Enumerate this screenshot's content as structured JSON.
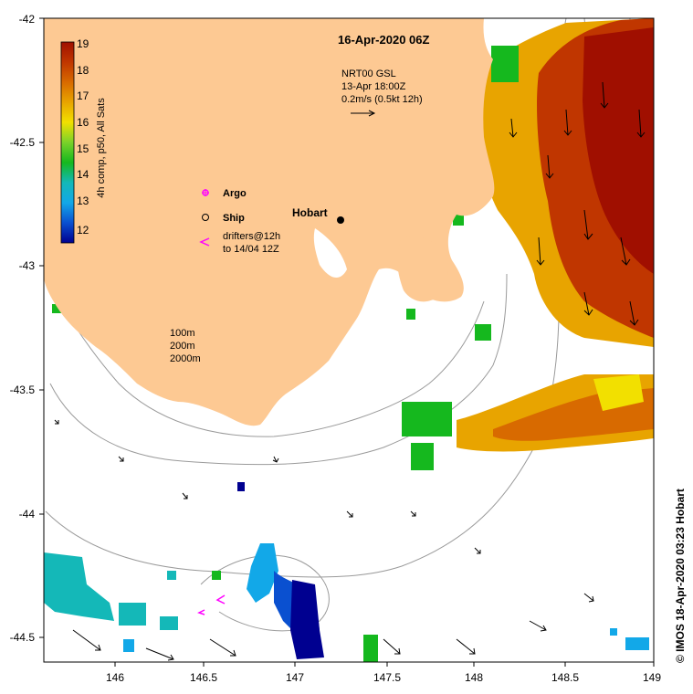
{
  "title": "16-Apr-2020 06Z",
  "colorbar": {
    "label": "4h comp, p50, All Sats",
    "ticks": [
      "19",
      "18",
      "17",
      "16",
      "15",
      "14",
      "13",
      "12"
    ],
    "stops": [
      "#a00f00",
      "#c03600",
      "#d86a00",
      "#e8a400",
      "#f2e000",
      "#7ad22a",
      "#15b81e",
      "#14b8b8",
      "#12a8e8",
      "#0a50d0",
      "#000090"
    ]
  },
  "current_info": {
    "line1": "NRT00 GSL",
    "line2": "13-Apr 18:00Z",
    "line3": "0.2m/s (0.5kt 12h)"
  },
  "legend": {
    "argo": "Argo",
    "ship": "Ship",
    "drifters_line1": "drifters@12h",
    "drifters_line2": "to 14/04 12Z"
  },
  "depth_legend": [
    "100m",
    "200m",
    "2000m"
  ],
  "place_hobart": "Hobart",
  "axes": {
    "x_ticks": [
      "146",
      "146.5",
      "147",
      "147.5",
      "148",
      "148.5",
      "149"
    ],
    "y_ticks": [
      "-42",
      "-42.5",
      "-43",
      "-43.5",
      "-44",
      "-44.5"
    ]
  },
  "credit": "© IMOS 18-Apr-2020 03:23 Hobart",
  "colors": {
    "land": "#fdc993",
    "contour": "#9a9a9a",
    "argo": "#ff00ff",
    "drifter": "#ff00ff"
  }
}
